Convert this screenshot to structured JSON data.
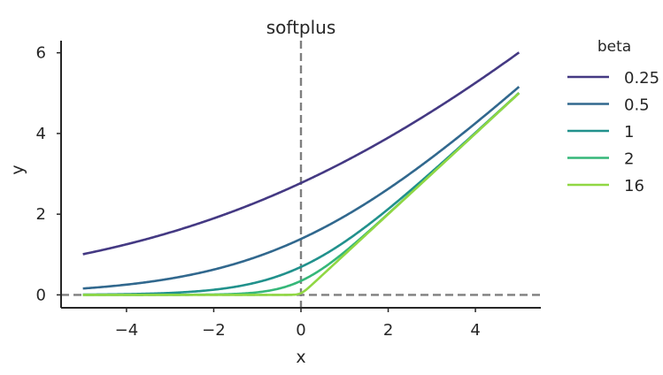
{
  "chart_data": {
    "type": "line",
    "title": "softplus",
    "xlabel": "x",
    "ylabel": "y",
    "xlim": [
      -5.5,
      5.5
    ],
    "ylim": [
      -0.32,
      6.3
    ],
    "xticks": [
      -4,
      -2,
      0,
      2,
      4
    ],
    "xtick_labels": [
      "−4",
      "−2",
      "0",
      "2",
      "4"
    ],
    "yticks": [
      0,
      2,
      4,
      6
    ],
    "ytick_labels": [
      "0",
      "2",
      "4",
      "6"
    ],
    "grid": false,
    "legend_title": "beta",
    "legend_placement": "outside-right",
    "function": "y = (1/beta) * ln(1 + exp(beta * x))",
    "x_range": [
      -5,
      5
    ],
    "reference_lines": [
      {
        "orientation": "vertical",
        "value": 0,
        "style": "dashed",
        "color": "#7f7f7f"
      },
      {
        "orientation": "horizontal",
        "value": 0,
        "style": "dashed",
        "color": "#7f7f7f"
      }
    ],
    "series": [
      {
        "name": "0.25",
        "beta": 0.25,
        "color": "#443983"
      },
      {
        "name": "0.5",
        "beta": 0.5,
        "color": "#31688e"
      },
      {
        "name": "1",
        "beta": 1,
        "color": "#21918c"
      },
      {
        "name": "2",
        "beta": 2,
        "color": "#35b779"
      },
      {
        "name": "16",
        "beta": 16,
        "color": "#90d743"
      }
    ]
  }
}
